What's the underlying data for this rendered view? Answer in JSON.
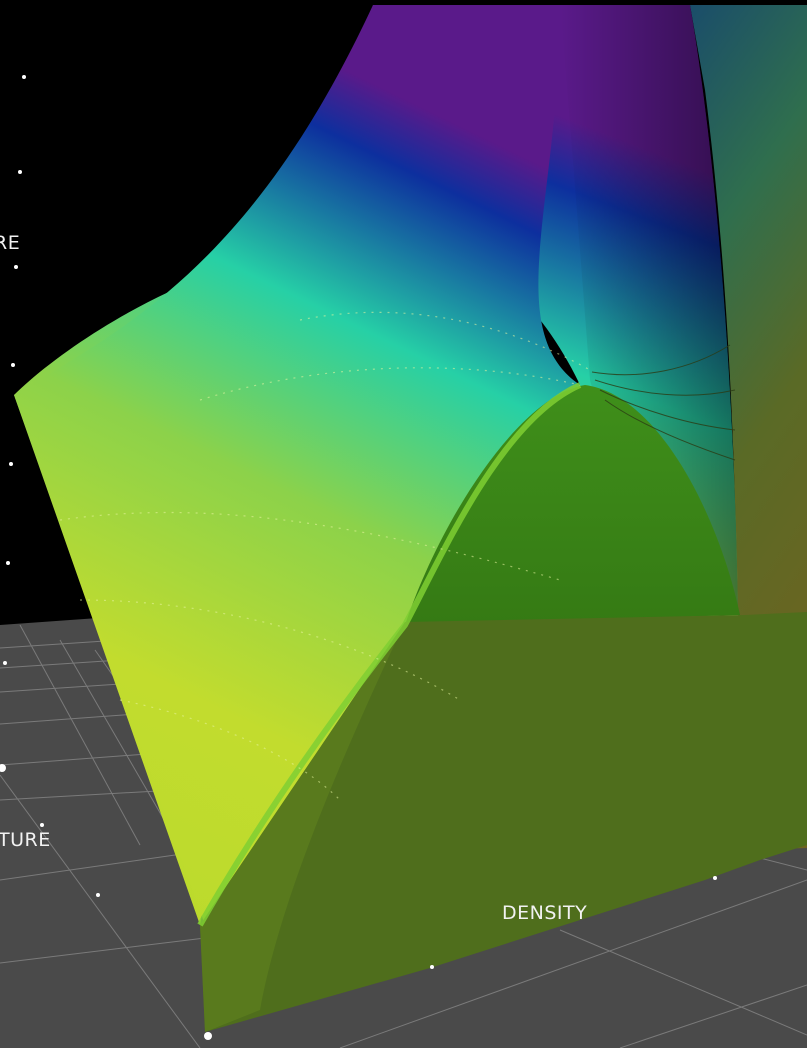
{
  "viewer": {
    "axis_labels": {
      "top": "RE",
      "left": "TURE",
      "density": "DENSITY"
    },
    "colors": {
      "background": "#000000",
      "floor": "#4a4a4a",
      "grid_line": "#8a8a8a",
      "surface_purple": "#5a1a8a",
      "surface_blue": "#0d2f9e",
      "surface_teal": "#26d0a6",
      "surface_green": "#8cd24a",
      "surface_yellow": "#c2dc2e",
      "dome_green": "#3e8a18",
      "lower_olive": "#4f6e1c",
      "right_olive": "#6e6420"
    }
  }
}
